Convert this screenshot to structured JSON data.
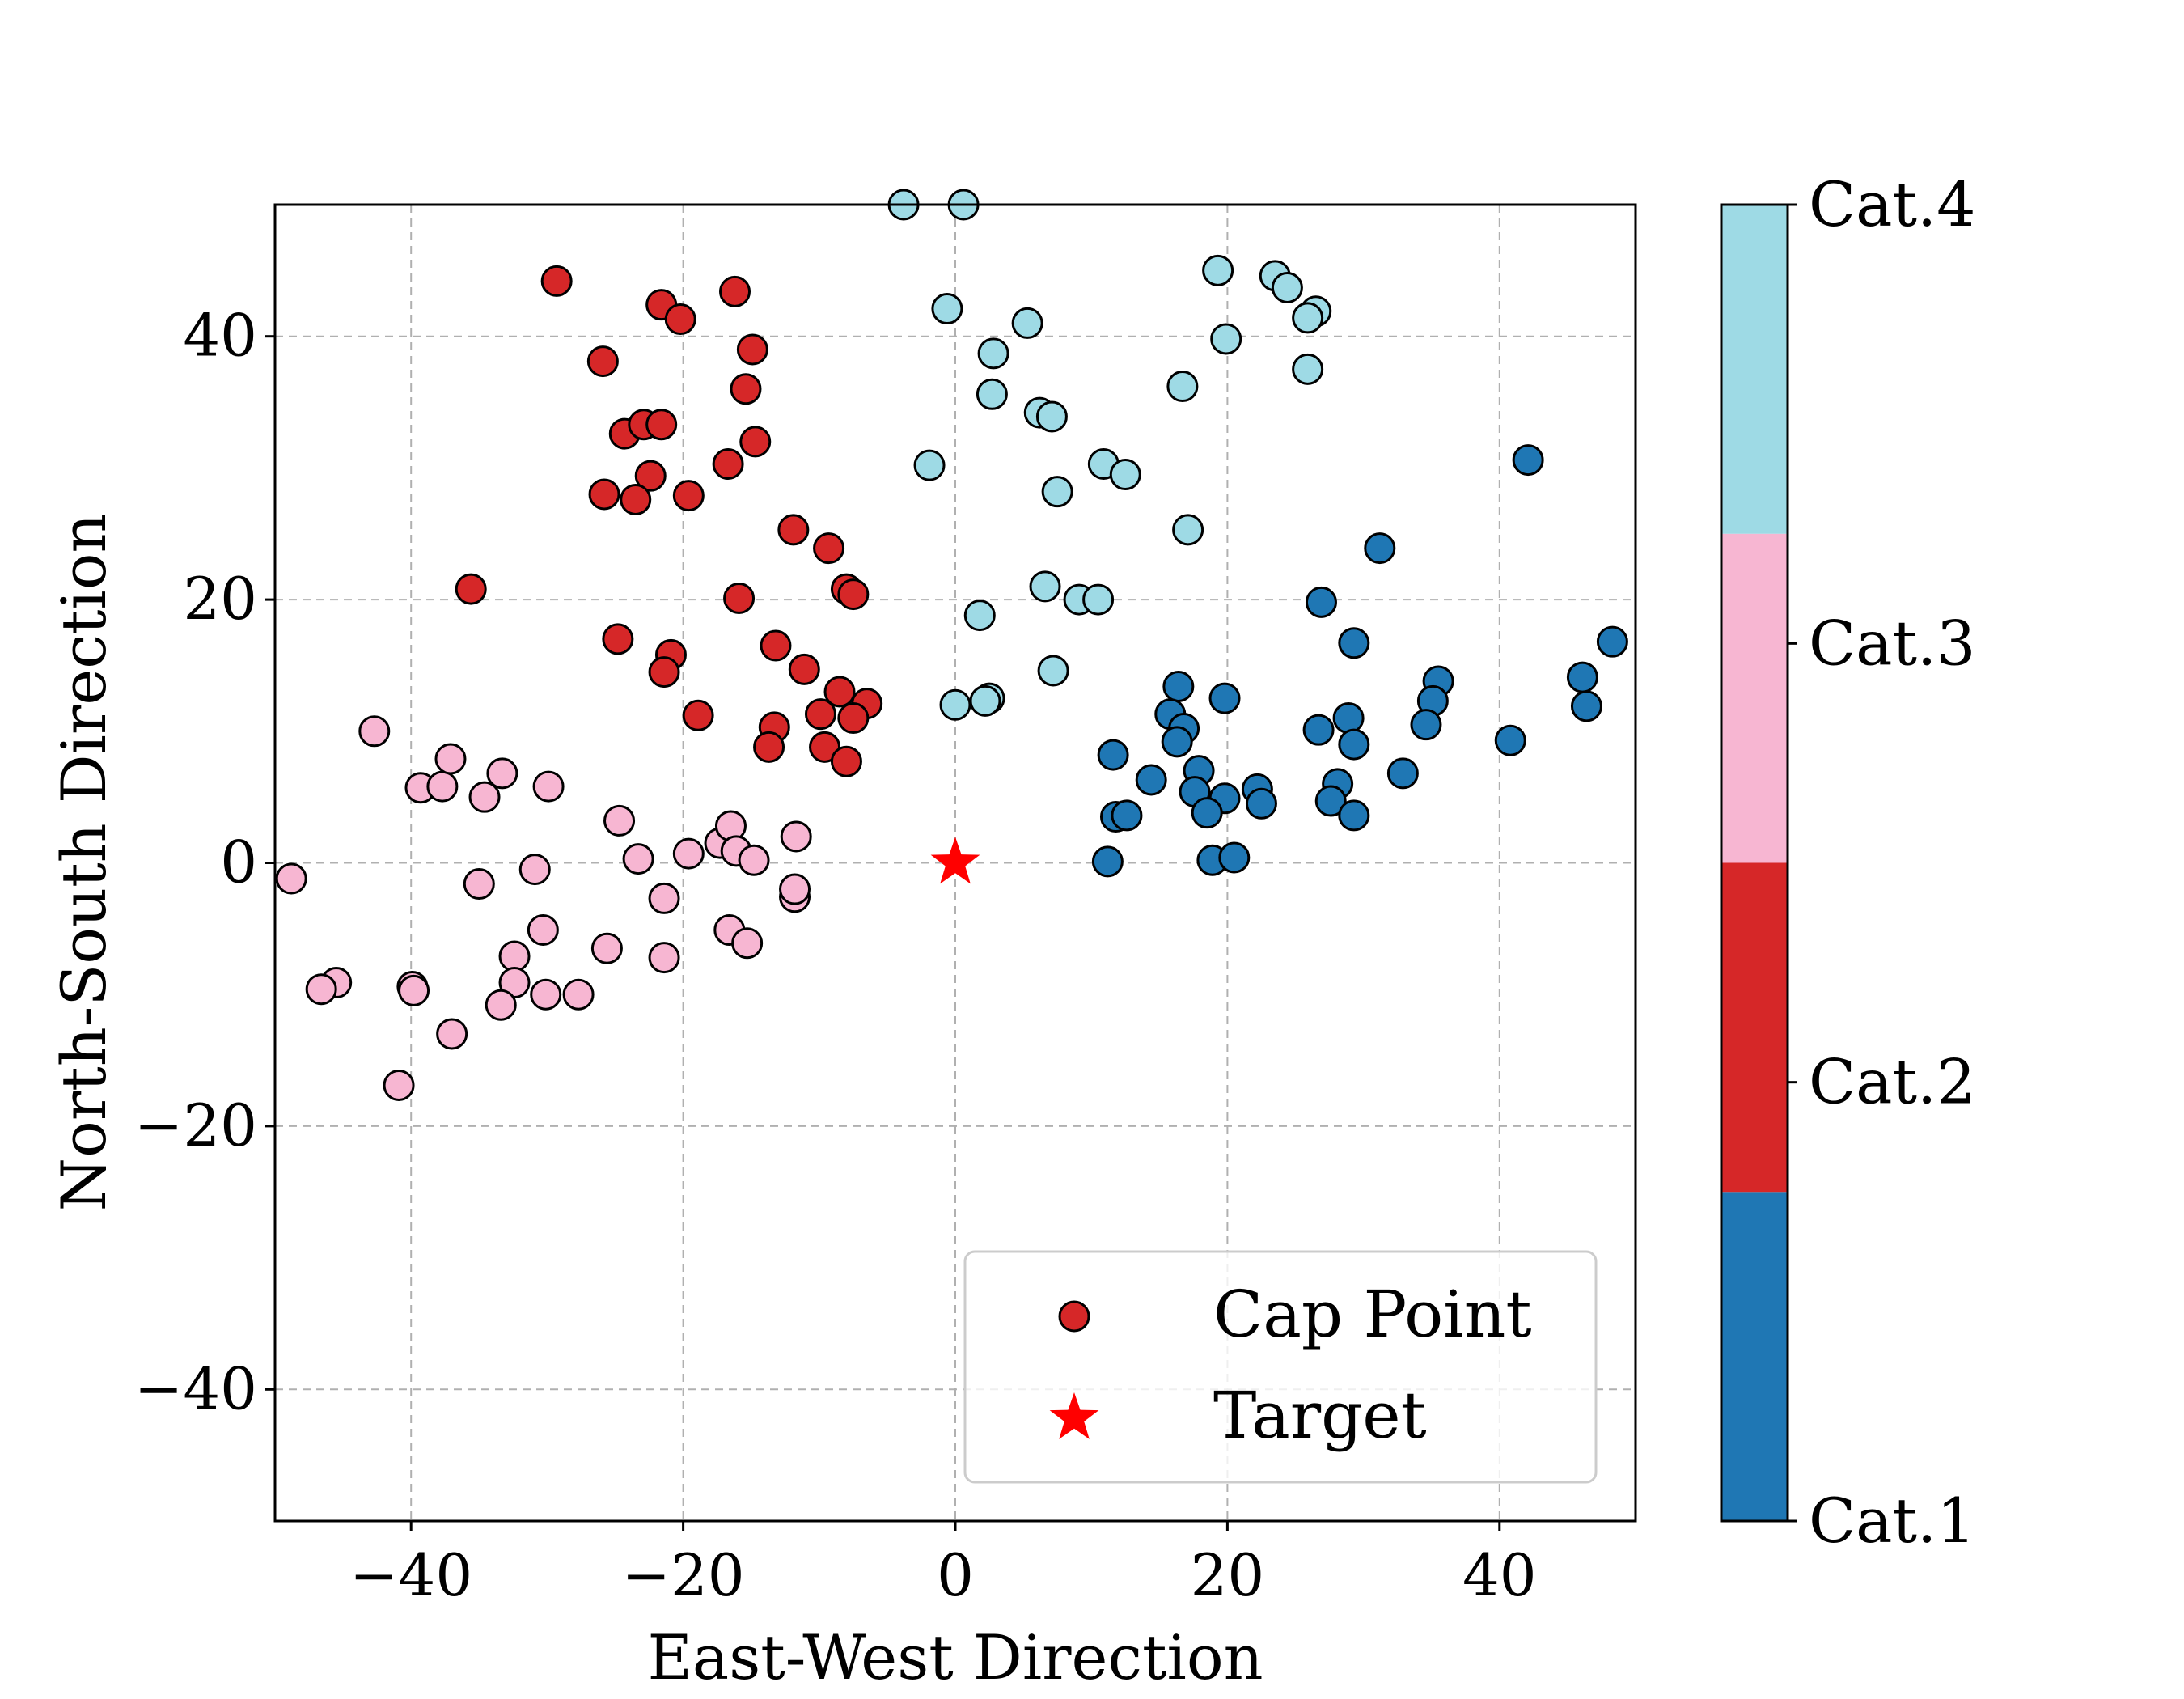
{
  "chart_data": {
    "type": "scatter",
    "title": "",
    "xlabel": "East-West Direction",
    "ylabel": "North-South Direction",
    "xlim": [
      -50,
      50
    ],
    "ylim": [
      -50,
      50
    ],
    "xticks": [
      -40,
      -20,
      0,
      20,
      40
    ],
    "yticks": [
      -40,
      -20,
      0,
      20,
      40
    ],
    "grid": true,
    "legend": {
      "location": "lower-right",
      "entries": [
        {
          "label": "Cap Point",
          "marker": "circle",
          "color": "#d62728"
        },
        {
          "label": "Target",
          "marker": "star",
          "color": "#ff0000"
        }
      ]
    },
    "colorbar": {
      "categories": [
        "Cat.1",
        "Cat.2",
        "Cat.3",
        "Cat.4"
      ],
      "colors": [
        "#1f77b4",
        "#d62728",
        "#f7b6d2",
        "#9edae5"
      ]
    },
    "target": {
      "x": 0,
      "y": 0,
      "color": "#ff0000"
    },
    "series": [
      {
        "name": "Cat.1",
        "color": "#1f77b4",
        "points": [
          [
            42.1,
            30.6
          ],
          [
            31.2,
            23.9
          ],
          [
            26.9,
            19.8
          ],
          [
            29.3,
            16.7
          ],
          [
            48.3,
            16.8
          ],
          [
            46.1,
            14.1
          ],
          [
            46.4,
            11.9
          ],
          [
            35.5,
            13.8
          ],
          [
            35.1,
            12.3
          ],
          [
            34.6,
            10.5
          ],
          [
            40.8,
            9.3
          ],
          [
            26.7,
            10.1
          ],
          [
            28.9,
            11.0
          ],
          [
            29.3,
            9.0
          ],
          [
            19.8,
            12.5
          ],
          [
            16.4,
            13.4
          ],
          [
            15.8,
            11.3
          ],
          [
            16.8,
            10.2
          ],
          [
            16.3,
            9.2
          ],
          [
            11.6,
            8.2
          ],
          [
            14.4,
            6.3
          ],
          [
            17.9,
            7.0
          ],
          [
            17.6,
            5.4
          ],
          [
            19.8,
            4.9
          ],
          [
            22.2,
            5.6
          ],
          [
            22.5,
            4.5
          ],
          [
            18.5,
            3.8
          ],
          [
            28.1,
            6.0
          ],
          [
            27.6,
            4.7
          ],
          [
            29.3,
            3.6
          ],
          [
            32.9,
            6.8
          ],
          [
            11.8,
            3.5
          ],
          [
            12.6,
            3.6
          ],
          [
            11.2,
            0.1
          ],
          [
            18.9,
            0.2
          ],
          [
            20.5,
            0.4
          ]
        ]
      },
      {
        "name": "Cat.2",
        "color": "#d62728",
        "points": [
          [
            -29.3,
            44.2
          ],
          [
            -21.6,
            42.4
          ],
          [
            -20.2,
            41.3
          ],
          [
            -16.2,
            43.4
          ],
          [
            -14.9,
            39.0
          ],
          [
            -25.9,
            38.1
          ],
          [
            -15.4,
            36.0
          ],
          [
            -24.3,
            32.6
          ],
          [
            -22.9,
            33.3
          ],
          [
            -21.6,
            33.3
          ],
          [
            -14.7,
            32.0
          ],
          [
            -22.4,
            29.4
          ],
          [
            -16.7,
            30.3
          ],
          [
            -25.8,
            28.0
          ],
          [
            -23.5,
            27.6
          ],
          [
            -19.6,
            27.9
          ],
          [
            -11.9,
            25.3
          ],
          [
            -9.3,
            23.9
          ],
          [
            -35.6,
            20.8
          ],
          [
            -8.0,
            20.8
          ],
          [
            -7.5,
            20.4
          ],
          [
            -15.9,
            20.1
          ],
          [
            -24.8,
            17.0
          ],
          [
            -13.2,
            16.5
          ],
          [
            -20.9,
            15.8
          ],
          [
            -21.4,
            14.5
          ],
          [
            -11.1,
            14.7
          ],
          [
            -8.5,
            13.0
          ],
          [
            -6.5,
            12.1
          ],
          [
            -9.9,
            11.3
          ],
          [
            -7.5,
            11.0
          ],
          [
            -18.9,
            11.2
          ],
          [
            -13.3,
            10.3
          ],
          [
            -13.7,
            8.8
          ],
          [
            -9.6,
            8.8
          ],
          [
            -8.0,
            7.7
          ]
        ]
      },
      {
        "name": "Cat.3",
        "color": "#f7b6d2",
        "points": [
          [
            -42.7,
            10.0
          ],
          [
            -39.3,
            5.7
          ],
          [
            -37.7,
            5.8
          ],
          [
            -37.1,
            7.9
          ],
          [
            -33.3,
            6.8
          ],
          [
            -34.6,
            5.0
          ],
          [
            -29.9,
            5.8
          ],
          [
            -24.7,
            3.2
          ],
          [
            -23.3,
            0.3
          ],
          [
            -19.6,
            0.7
          ],
          [
            -17.3,
            1.5
          ],
          [
            -16.5,
            2.8
          ],
          [
            -16.1,
            0.9
          ],
          [
            -14.8,
            0.2
          ],
          [
            -11.7,
            2.0
          ],
          [
            -11.8,
            -2.6
          ],
          [
            -11.8,
            -2.0
          ],
          [
            -48.8,
            -1.2
          ],
          [
            -35.0,
            -1.6
          ],
          [
            -30.9,
            -0.5
          ],
          [
            -21.4,
            -2.7
          ],
          [
            -30.3,
            -5.1
          ],
          [
            -16.6,
            -5.1
          ],
          [
            -15.3,
            -6.1
          ],
          [
            -25.6,
            -6.5
          ],
          [
            -21.4,
            -7.2
          ],
          [
            -32.4,
            -7.1
          ],
          [
            -32.4,
            -9.1
          ],
          [
            -39.9,
            -9.4
          ],
          [
            -39.8,
            -9.7
          ],
          [
            -45.5,
            -9.1
          ],
          [
            -46.6,
            -9.6
          ],
          [
            -30.1,
            -10.0
          ],
          [
            -27.7,
            -10.0
          ],
          [
            -33.4,
            -10.8
          ],
          [
            -37.0,
            -13.0
          ],
          [
            -40.9,
            -16.9
          ]
        ]
      },
      {
        "name": "Cat.4",
        "color": "#9edae5",
        "points": [
          [
            -3.8,
            50.0
          ],
          [
            0.6,
            50.0
          ],
          [
            19.3,
            45.0
          ],
          [
            23.5,
            44.6
          ],
          [
            24.4,
            43.7
          ],
          [
            26.5,
            41.9
          ],
          [
            25.9,
            41.4
          ],
          [
            -0.6,
            42.1
          ],
          [
            5.3,
            41.0
          ],
          [
            19.9,
            39.8
          ],
          [
            2.8,
            38.7
          ],
          [
            25.9,
            37.5
          ],
          [
            16.7,
            36.2
          ],
          [
            2.7,
            35.6
          ],
          [
            6.2,
            34.2
          ],
          [
            7.1,
            33.9
          ],
          [
            -1.9,
            30.2
          ],
          [
            10.9,
            30.3
          ],
          [
            12.5,
            29.5
          ],
          [
            7.5,
            28.2
          ],
          [
            17.1,
            25.3
          ],
          [
            6.6,
            21.0
          ],
          [
            9.1,
            20.0
          ],
          [
            10.5,
            20.0
          ],
          [
            1.8,
            18.8
          ],
          [
            7.2,
            14.6
          ],
          [
            2.5,
            12.5
          ],
          [
            2.2,
            12.3
          ],
          [
            0.0,
            12.0
          ]
        ]
      }
    ]
  }
}
